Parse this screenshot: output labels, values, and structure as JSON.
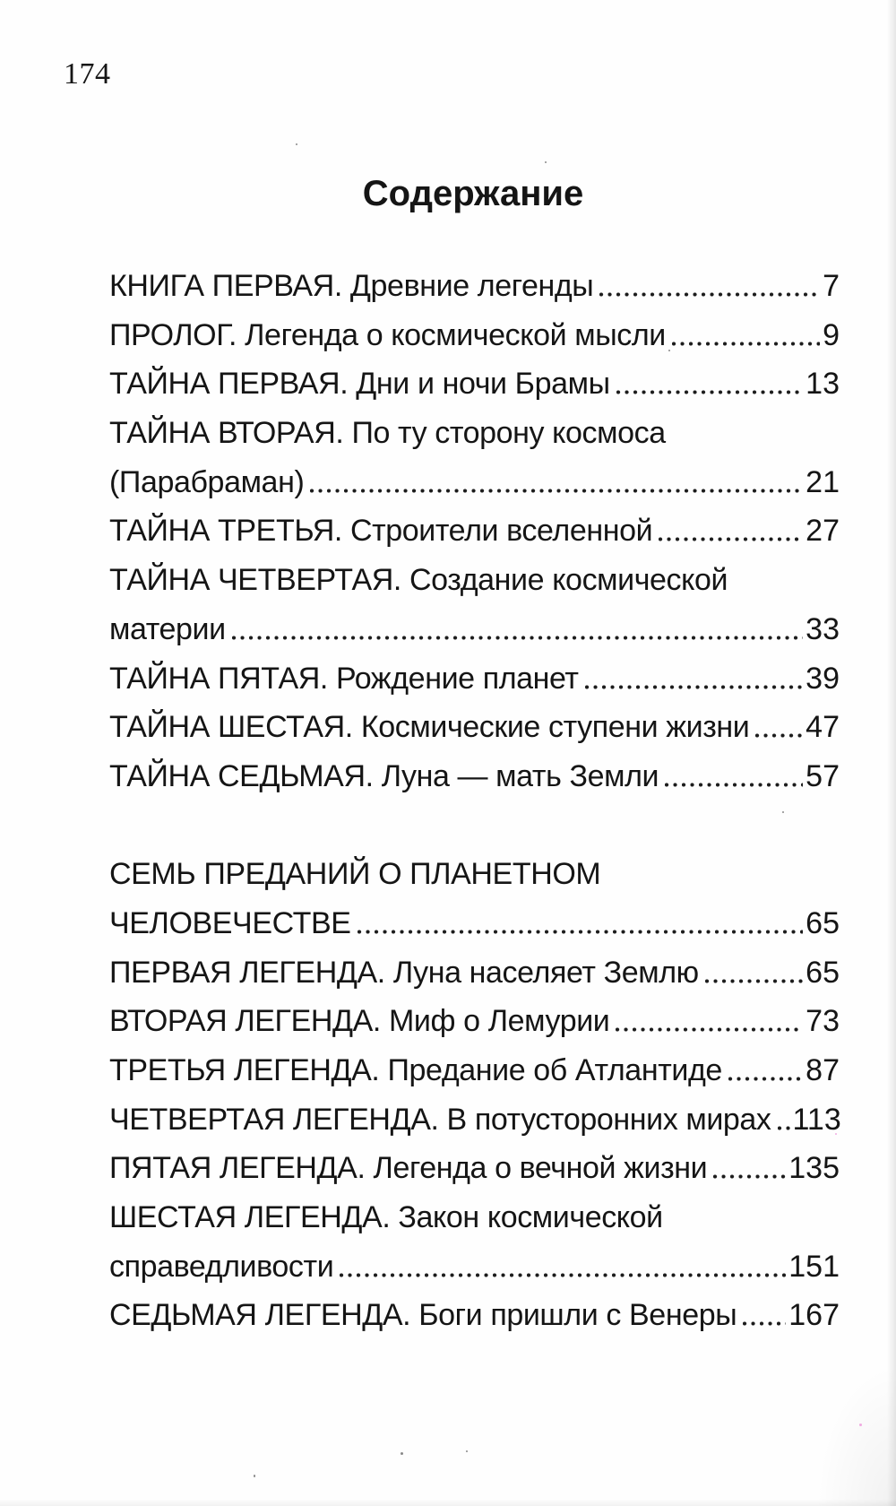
{
  "page": {
    "folio": "174"
  },
  "toc": {
    "title": "Содержание",
    "entries": [
      {
        "text": "КНИГА ПЕРВАЯ. Древние легенды",
        "page": "7"
      },
      {
        "text": "ПРОЛОГ. Легенда о космической мысли",
        "page": "9"
      },
      {
        "text": "ТАЙНА ПЕРВАЯ. Дни и ночи Брамы",
        "page": "13"
      },
      {
        "text": "ТАЙНА ВТОРАЯ. По ту сторону космоса",
        "page": ""
      },
      {
        "text": "(Парабраман)",
        "page": "21"
      },
      {
        "text": "ТАЙНА ТРЕТЬЯ. Строители вселенной",
        "page": "27"
      },
      {
        "text": "ТАЙНА ЧЕТВЕРТАЯ. Создание космической",
        "page": ""
      },
      {
        "text": "материи",
        "page": "33"
      },
      {
        "text": "ТАЙНА ПЯТАЯ. Рождение планет",
        "page": "39"
      },
      {
        "text": "ТАЙНА ШЕСТАЯ. Космические ступени жизни",
        "page": "47"
      },
      {
        "text": "ТАЙНА СЕДЬМАЯ. Луна — мать Земли",
        "page": "57"
      },
      {
        "spacer": true
      },
      {
        "text": "СЕМЬ ПРЕДАНИЙ О ПЛАНЕТНОМ",
        "page": ""
      },
      {
        "text": "ЧЕЛОВЕЧЕСТВЕ",
        "page": "65"
      },
      {
        "text": "ПЕРВАЯ ЛЕГЕНДА. Луна населяет Землю",
        "page": "65"
      },
      {
        "text": "ВТОРАЯ ЛЕГЕНДА. Миф о Лемурии",
        "page": "73"
      },
      {
        "text": "ТРЕТЬЯ ЛЕГЕНДА. Предание об Атлантиде",
        "page": "87"
      },
      {
        "text": "ЧЕТВЕРТАЯ ЛЕГЕНДА. В потусторонних мирах",
        "page": "113"
      },
      {
        "text": "ПЯТАЯ ЛЕГЕНДА. Легенда о вечной жизни",
        "page": "135"
      },
      {
        "text": "ШЕСТАЯ ЛЕГЕНДА. Закон космической",
        "page": ""
      },
      {
        "text": "справедливости",
        "page": "151"
      },
      {
        "text": "СЕДЬМАЯ ЛЕГЕНДА. Боги пришли с Венеры",
        "page": "167"
      }
    ]
  },
  "colors": {
    "paper": "#fefefe",
    "ink": "#151515"
  }
}
